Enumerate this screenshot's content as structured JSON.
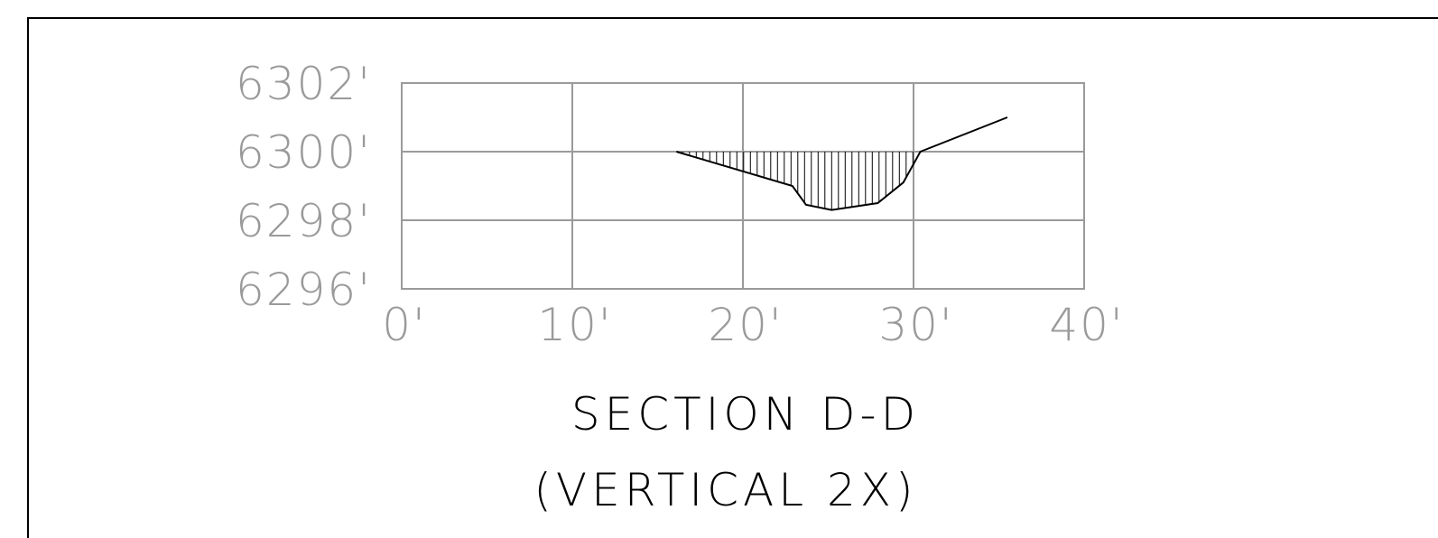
{
  "chart_data": {
    "type": "area",
    "title": "SECTION D-D",
    "subtitle": "(VERTICAL 2X)",
    "xlabel": "",
    "ylabel": "",
    "x_ticks": [
      "0'",
      "10'",
      "20'",
      "30'",
      "40'"
    ],
    "y_ticks": [
      "6302'",
      "6300'",
      "6298'",
      "6296'"
    ],
    "xlim": [
      0,
      40
    ],
    "ylim": [
      6296,
      6302
    ],
    "grid": true,
    "reference_elevation": 6300,
    "series": [
      {
        "x": [
          16.1,
          22.9,
          23.7,
          25.2,
          27.9,
          29.4,
          30.4,
          35.5
        ],
        "y": [
          6300.0,
          6299.0,
          6298.45,
          6298.3,
          6298.5,
          6299.1,
          6300.0,
          6301.0
        ]
      }
    ],
    "fill": "vertical-hatch between profile and 6300' line",
    "colors": {
      "grid": "#9a9a9a",
      "profile": "#000000",
      "text_axis": "#9a9a9a",
      "text_title": "#000000"
    }
  }
}
